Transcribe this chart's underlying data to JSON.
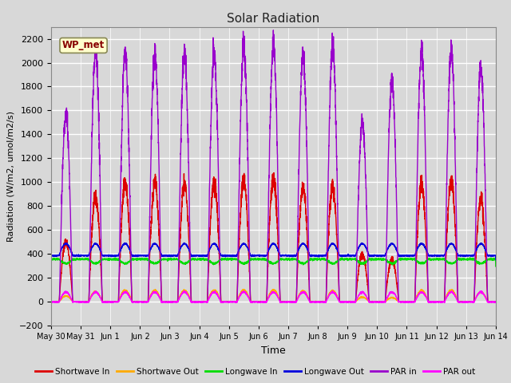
{
  "title": "Solar Radiation",
  "ylabel": "Radiation (W/m2, umol/m2/s)",
  "xlabel": "Time",
  "ylim": [
    -200,
    2300
  ],
  "yticks": [
    -200,
    0,
    200,
    400,
    600,
    800,
    1000,
    1200,
    1400,
    1600,
    1800,
    2000,
    2200
  ],
  "plot_bg_color": "#d8d8d8",
  "fig_bg_color": "#d8d8d8",
  "legend_labels": [
    "Shortwave In",
    "Shortwave Out",
    "Longwave In",
    "Longwave Out",
    "PAR in",
    "PAR out"
  ],
  "legend_colors": [
    "#dd0000",
    "#ffaa00",
    "#00dd00",
    "#0000dd",
    "#9900cc",
    "#ff00ff"
  ],
  "station_label": "WP_met",
  "x_tick_labels": [
    "May 30",
    "May 31",
    "Jun 1",
    "Jun 2",
    "Jun 3",
    "Jun 4",
    "Jun 5",
    "Jun 6",
    "Jun 7",
    "Jun 8",
    "Jun 9",
    "Jun 10",
    "Jun 11",
    "Jun 12",
    "Jun 13",
    "Jun 14"
  ],
  "n_days": 15,
  "samples_per_day": 288
}
